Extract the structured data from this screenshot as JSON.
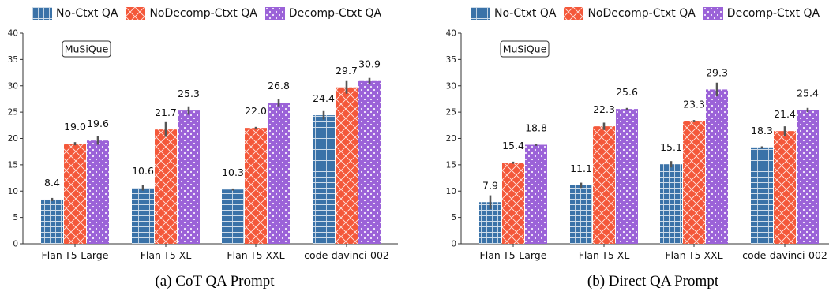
{
  "legend": [
    {
      "name": "No-Ctxt QA",
      "color": "#3a72a8",
      "pattern": "grid"
    },
    {
      "name": "NoDecomp-Ctxt QA",
      "color": "#f4583a",
      "pattern": "crosshatch"
    },
    {
      "name": "Decomp-Ctxt QA",
      "color": "#9b62d8",
      "pattern": "dots"
    }
  ],
  "chart_data": [
    {
      "type": "bar",
      "caption": "(a) CoT QA Prompt",
      "annotation": "MuSiQue",
      "categories": [
        "Flan-T5-Large",
        "Flan-T5-XL",
        "Flan-T5-XXL",
        "code-davinci-002"
      ],
      "ylim": [
        0,
        40
      ],
      "yticks": [
        "0",
        "5",
        "10",
        "15",
        "20",
        "25",
        "30",
        "35",
        "40"
      ],
      "series": [
        {
          "name": "No-Ctxt QA",
          "values": [
            8.4,
            10.6,
            10.3,
            24.4
          ],
          "labels": [
            "8.4",
            "10.6",
            "10.3",
            "24.4"
          ],
          "err": [
            0.3,
            0.5,
            0.2,
            0.8
          ]
        },
        {
          "name": "NoDecomp-Ctxt QA",
          "values": [
            19.0,
            21.7,
            22.0,
            29.7
          ],
          "labels": [
            "19.0",
            "21.7",
            "22.0",
            "29.7"
          ],
          "err": [
            0.3,
            1.4,
            0.2,
            1.2
          ]
        },
        {
          "name": "Decomp-Ctxt QA",
          "values": [
            19.6,
            25.3,
            26.8,
            30.9
          ],
          "labels": [
            "19.6",
            "25.3",
            "26.8",
            "30.9"
          ],
          "err": [
            0.8,
            0.8,
            0.7,
            0.6
          ]
        }
      ]
    },
    {
      "type": "bar",
      "caption": "(b) Direct QA Prompt",
      "annotation": "MuSiQue",
      "categories": [
        "Flan-T5-Large",
        "Flan-T5-XL",
        "Flan-T5-XXL",
        "code-davinci-002"
      ],
      "ylim": [
        0,
        40
      ],
      "yticks": [
        "0",
        "5",
        "10",
        "15",
        "20",
        "25",
        "30",
        "35",
        "40"
      ],
      "series": [
        {
          "name": "No-Ctxt QA",
          "values": [
            7.9,
            11.1,
            15.1,
            18.3
          ],
          "labels": [
            "7.9",
            "11.1",
            "15.1",
            "18.3"
          ],
          "err": [
            1.3,
            0.5,
            0.6,
            0.2
          ]
        },
        {
          "name": "NoDecomp-Ctxt QA",
          "values": [
            15.4,
            22.3,
            23.3,
            21.4
          ],
          "labels": [
            "15.4",
            "22.3",
            "23.3",
            "21.4"
          ],
          "err": [
            0.2,
            0.7,
            0.2,
            0.9
          ]
        },
        {
          "name": "Decomp-Ctxt QA",
          "values": [
            18.8,
            25.6,
            29.3,
            25.4
          ],
          "labels": [
            "18.8",
            "25.6",
            "29.3",
            "25.4"
          ],
          "err": [
            0.2,
            0.2,
            1.3,
            0.4
          ]
        }
      ]
    }
  ]
}
